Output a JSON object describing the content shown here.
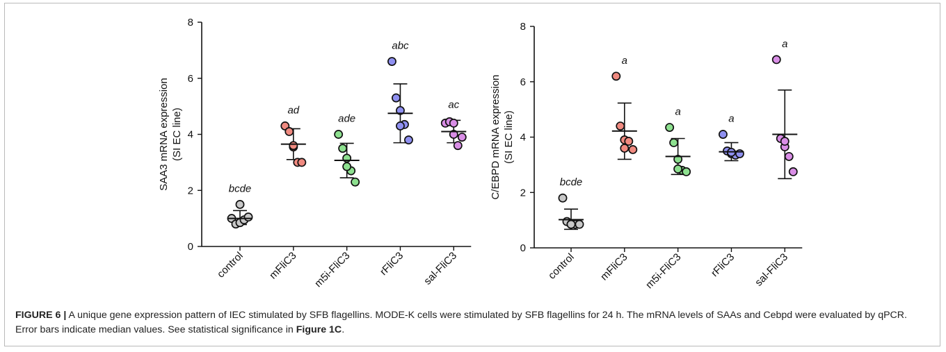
{
  "caption": {
    "label": "FIGURE 6 |",
    "text": " A unique gene expression pattern of IEC stimulated by SFB flagellins. MODE-K cells were stimulated by SFB flagellins for 24 h. The mRNA levels of SAAs and Cebpd were evaluated by qPCR. Error bars indicate median values. See statistical significance in ",
    "ref": "Figure 1C",
    "end": "."
  },
  "chart_data": [
    {
      "type": "scatter",
      "title": "",
      "ylabel_line1": "SAA3 mRNA expression",
      "ylabel_line2": "(SI EC line)",
      "ylim": [
        0,
        8
      ],
      "yticks": [
        "0",
        "2",
        "4",
        "6",
        "8"
      ],
      "categories": [
        "control",
        "mFliC3",
        "m5i-FliC3",
        "rFliC3",
        "sal-FliC3"
      ],
      "colors": [
        "#c8c8c8",
        "#f08a80",
        "#8de08f",
        "#8f90f0",
        "#d98ee6"
      ],
      "groups": [
        {
          "category": "control",
          "points": [
            1.0,
            0.8,
            0.85,
            0.95,
            1.05,
            1.5
          ],
          "center": 1.0,
          "err_low": 0.78,
          "err_high": 1.28,
          "label": "bcde"
        },
        {
          "category": "mFliC3",
          "points": [
            4.3,
            4.1,
            3.55,
            3.0,
            3.0,
            3.6
          ],
          "center": 3.65,
          "err_low": 3.1,
          "err_high": 4.2,
          "label": "ad"
        },
        {
          "category": "m5i-FliC3",
          "points": [
            4.0,
            3.5,
            3.15,
            2.7,
            2.3,
            2.85
          ],
          "center": 3.07,
          "err_low": 2.45,
          "err_high": 3.68,
          "label": "ade"
        },
        {
          "category": "rFliC3",
          "points": [
            6.6,
            5.3,
            4.85,
            4.35,
            3.8,
            4.3
          ],
          "center": 4.75,
          "err_low": 3.7,
          "err_high": 5.8,
          "label": "abc"
        },
        {
          "category": "sal-FliC3",
          "points": [
            4.4,
            4.45,
            4.0,
            3.6,
            3.9,
            4.4
          ],
          "center": 4.1,
          "err_low": 3.7,
          "err_high": 4.5,
          "label": "ac"
        }
      ]
    },
    {
      "type": "scatter",
      "title": "",
      "ylabel_line1": "C/EBPD mRNA expression",
      "ylabel_line2": "(SI EC line)",
      "ylim": [
        0,
        8
      ],
      "yticks": [
        "0",
        "2",
        "4",
        "6",
        "8"
      ],
      "categories": [
        "control",
        "mFliC3",
        "m5i-FliC3",
        "rFliC3",
        "sal-FliC3"
      ],
      "colors": [
        "#c8c8c8",
        "#f08a80",
        "#8de08f",
        "#8f90f0",
        "#d98ee6"
      ],
      "groups": [
        {
          "category": "control",
          "points": [
            1.8,
            0.95,
            0.85,
            0.85,
            0.85,
            0.85
          ],
          "center": 1.02,
          "err_low": 0.67,
          "err_high": 1.4,
          "label": "bcde"
        },
        {
          "category": "mFliC3",
          "points": [
            6.2,
            4.4,
            3.9,
            3.85,
            3.55,
            3.6
          ],
          "center": 4.22,
          "err_low": 3.2,
          "err_high": 5.23,
          "label": "a"
        },
        {
          "category": "m5i-FliC3",
          "points": [
            4.35,
            3.8,
            3.2,
            2.8,
            2.75,
            2.85
          ],
          "center": 3.3,
          "err_low": 2.65,
          "err_high": 3.95,
          "label": "a"
        },
        {
          "category": "rFliC3",
          "points": [
            4.1,
            3.5,
            3.4,
            3.35,
            3.4,
            3.45
          ],
          "center": 3.47,
          "err_low": 3.15,
          "err_high": 3.8,
          "label": "a"
        },
        {
          "category": "sal-FliC3",
          "points": [
            6.8,
            3.95,
            3.65,
            3.3,
            2.75,
            3.85
          ],
          "center": 4.1,
          "err_low": 2.5,
          "err_high": 5.7,
          "label": "a"
        }
      ]
    }
  ]
}
